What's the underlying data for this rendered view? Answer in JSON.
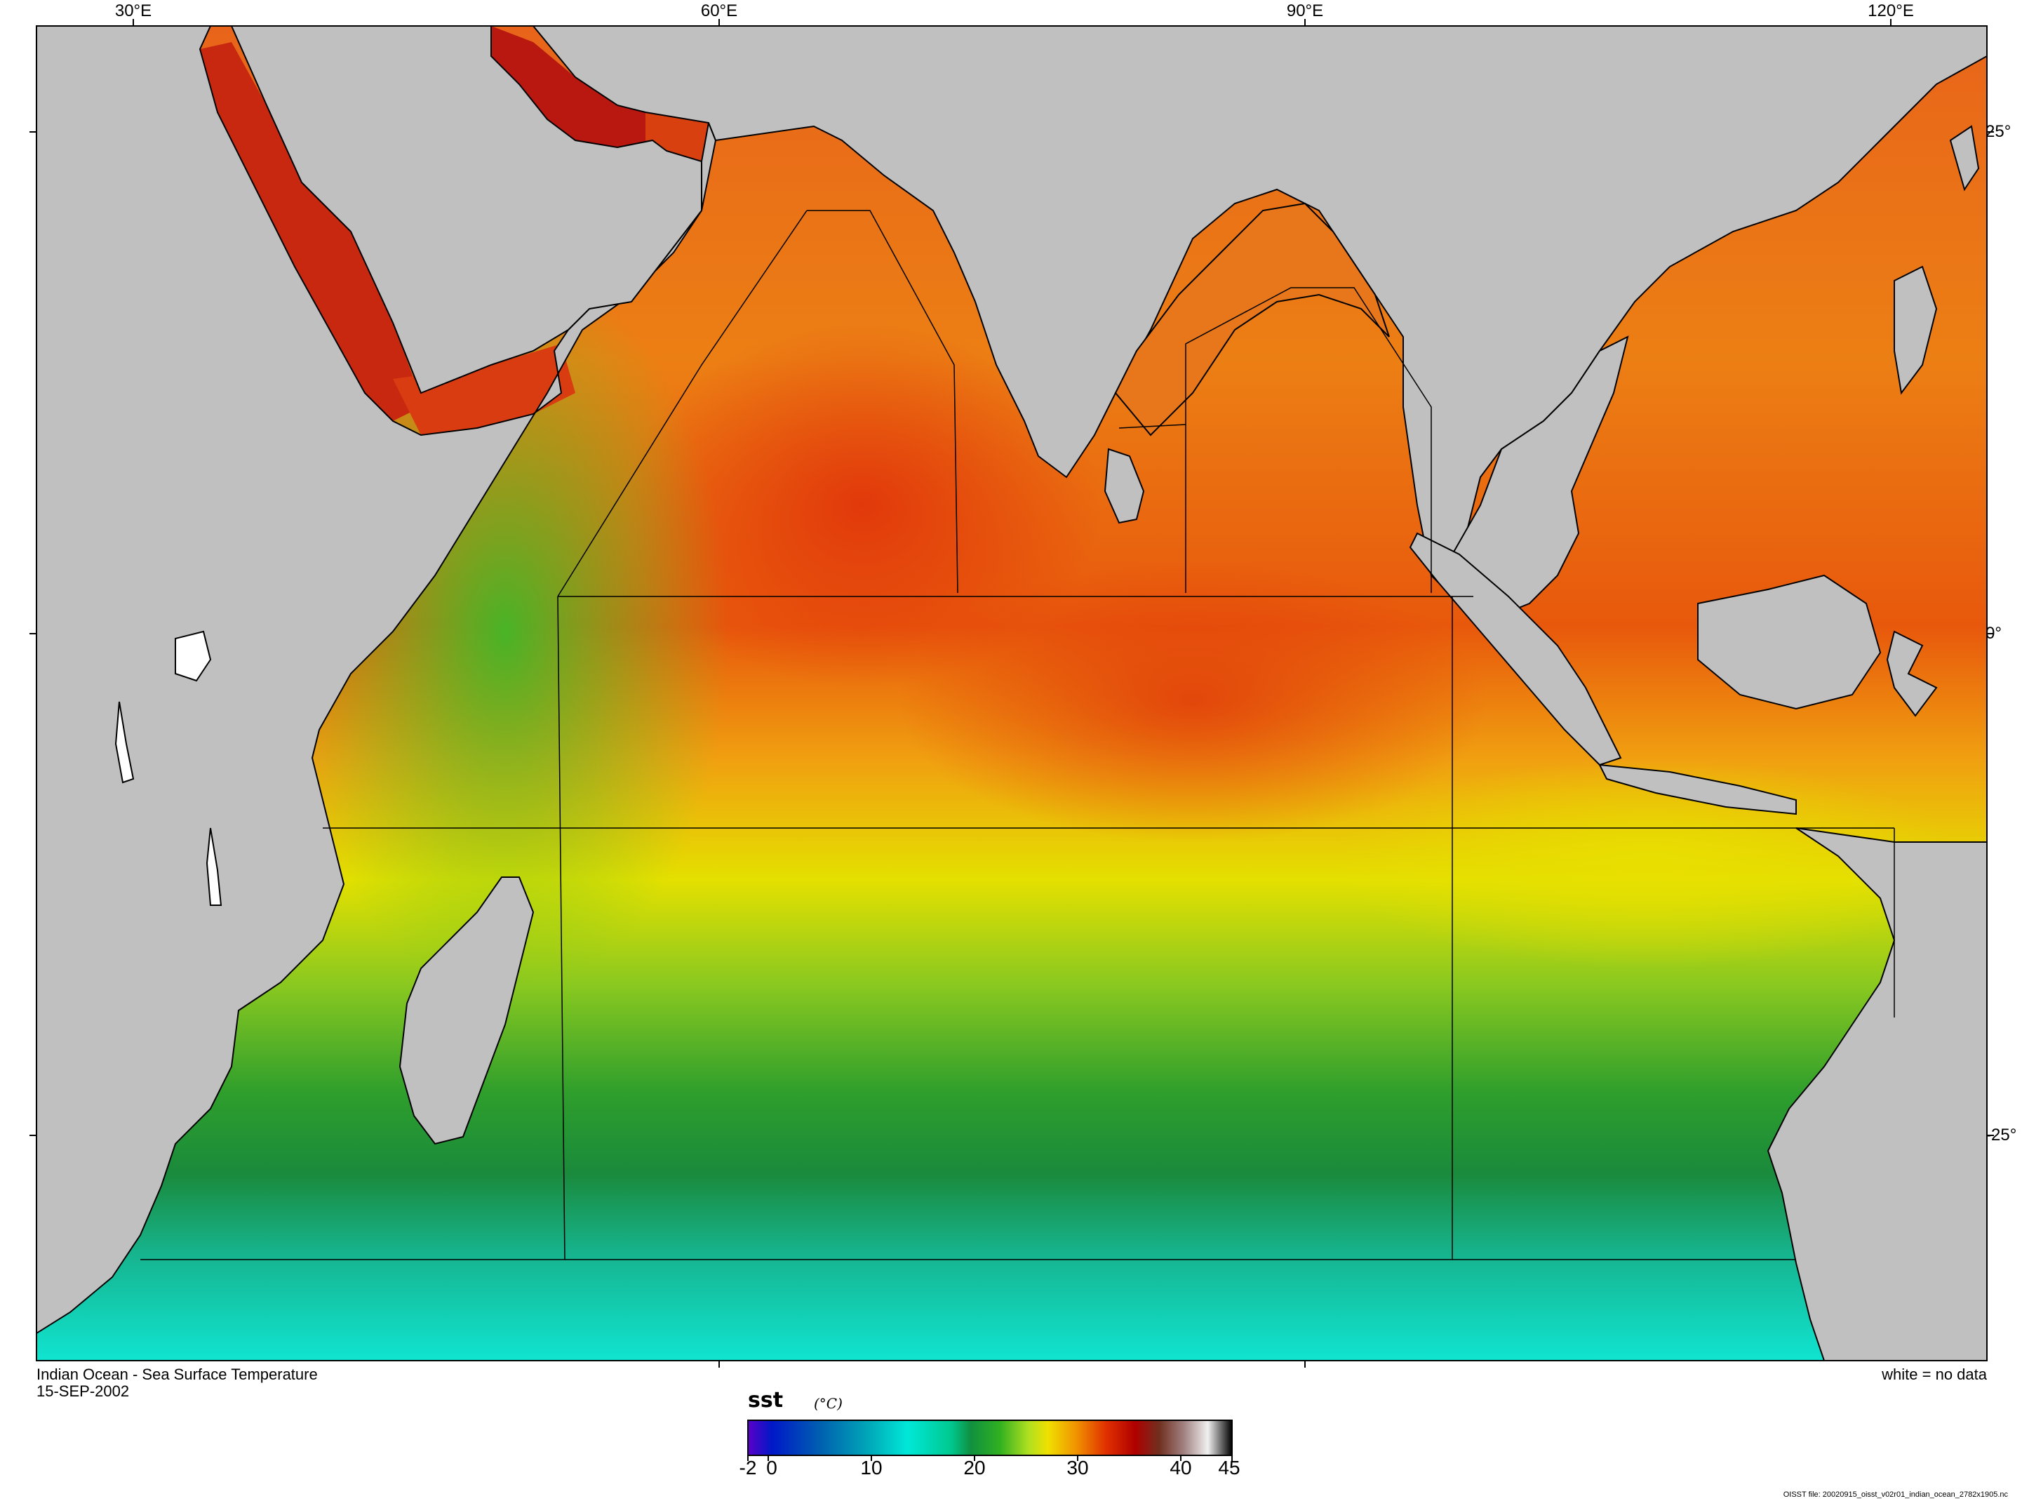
{
  "map": {
    "title": "Indian Ocean - Sea Surface Temperature",
    "date": "15-SEP-2002",
    "legend_note": "white = no data",
    "source_file": "OISST file: 20020915_oisst_v02r01_indian_ocean_2782x1905.nc",
    "lon_labels": [
      "30°E",
      "60°E",
      "90°E",
      "120°E"
    ],
    "lat_labels": [
      "25°",
      "0°",
      "-25°"
    ],
    "land_color": "#c0c0c0",
    "no_data_color": "#ffffff",
    "coastline_color": "#000000",
    "regions_depicted": [
      "Red Sea",
      "Persian Gulf",
      "Arabian Sea",
      "Bay of Bengal",
      "Madagascar",
      "Sri Lanka",
      "South China Sea",
      "Indonesia",
      "Australia"
    ]
  },
  "colorbar": {
    "variable": "sst",
    "unit": "(°C)",
    "range": [
      -2,
      45
    ],
    "tick_labels": [
      "-2",
      "0",
      "10",
      "20",
      "30",
      "40",
      "45"
    ],
    "tick_values": [
      -2,
      0,
      10,
      20,
      30,
      40,
      45
    ],
    "colors": [
      "#5a00c8",
      "#0018c8",
      "#0060b0",
      "#00a8b8",
      "#00e8d8",
      "#00c890",
      "#109040",
      "#30b020",
      "#b0e020",
      "#f0e000",
      "#f09000",
      "#e03000",
      "#b00000",
      "#703020",
      "#a08080",
      "#f0f0f0",
      "#000000"
    ]
  }
}
